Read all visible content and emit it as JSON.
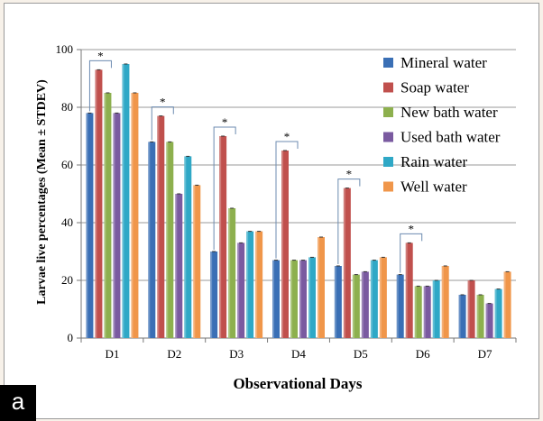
{
  "panel_label": "a",
  "chart_data": {
    "type": "bar",
    "xlabel": "Observational Days",
    "ylabel": "Larvae live percentages (Mean ± STDEV)",
    "ylim": [
      0,
      100
    ],
    "yticks": [
      "0",
      "20",
      "40",
      "60",
      "80",
      "100"
    ],
    "grid": "horizontal",
    "legend_position": "top-right",
    "categories": [
      "D1",
      "D2",
      "D3",
      "D4",
      "D5",
      "D6",
      "D7"
    ],
    "series": [
      {
        "name": "Mineral water",
        "color": "#3a6fb5",
        "values": [
          78,
          68,
          30,
          27,
          25,
          22,
          15
        ]
      },
      {
        "name": "Soap water",
        "color": "#c0504d",
        "values": [
          93,
          77,
          70,
          65,
          52,
          33,
          20
        ]
      },
      {
        "name": "New bath water",
        "color": "#8db04e",
        "values": [
          85,
          68,
          45,
          27,
          22,
          18,
          15
        ]
      },
      {
        "name": "Used bath water",
        "color": "#7a5aa0",
        "values": [
          78,
          50,
          33,
          27,
          23,
          18,
          12
        ]
      },
      {
        "name": "Rain water",
        "color": "#2fa8c6",
        "values": [
          95,
          63,
          37,
          28,
          27,
          20,
          17
        ]
      },
      {
        "name": "Well water",
        "color": "#f0964a",
        "values": [
          85,
          53,
          37,
          35,
          28,
          25,
          23
        ]
      }
    ],
    "annotations": [
      {
        "text": "*",
        "category": "D1"
      },
      {
        "text": "*",
        "category": "D2"
      },
      {
        "text": "*",
        "category": "D3"
      },
      {
        "text": "*",
        "category": "D4"
      },
      {
        "text": "*",
        "category": "D5"
      },
      {
        "text": "*",
        "category": "D6"
      }
    ]
  }
}
